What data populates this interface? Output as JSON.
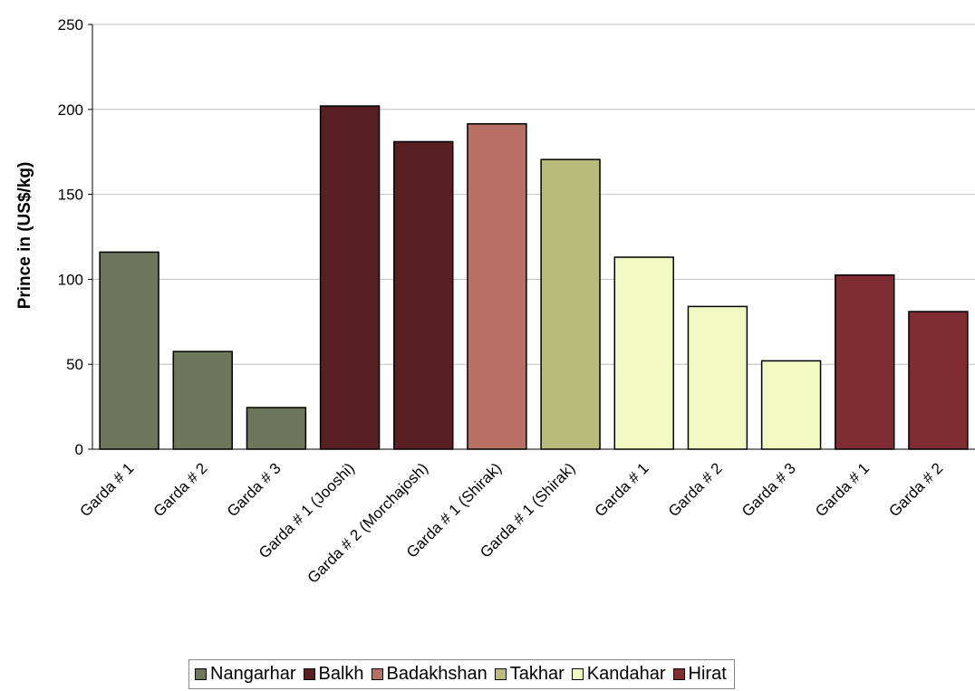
{
  "chart_data": {
    "type": "bar",
    "title": "",
    "xlabel": "",
    "ylabel": "Prince in (US$/kg)",
    "ylim": [
      0,
      250
    ],
    "yticks": [
      0,
      50,
      100,
      150,
      200,
      250
    ],
    "grid": true,
    "legend_position": "bottom",
    "categories": [
      "Garda # 1",
      "Garda # 2",
      "Garda # 3",
      "Garda # 1 (Jooshi)",
      "Garda # 2 (Morchajosh)",
      "Garda # 1 (Shirak)",
      "Garda # 1 (Shirak)",
      "Garda # 1",
      "Garda # 2",
      "Garda # 3",
      "Garda # 1",
      "Garda # 2"
    ],
    "values": [
      116,
      57.5,
      24.5,
      202,
      181,
      191.5,
      170.5,
      113,
      84,
      52,
      102.5,
      81
    ],
    "bar_series": [
      "Nangarhar",
      "Nangarhar",
      "Nangarhar",
      "Balkh",
      "Balkh",
      "Badakhshan",
      "Takhar",
      "Kandahar",
      "Kandahar",
      "Kandahar",
      "Hirat",
      "Hirat"
    ],
    "series": [
      {
        "name": "Nangarhar",
        "color": "#6e775b"
      },
      {
        "name": "Balkh",
        "color": "#5a1f23"
      },
      {
        "name": "Badakhshan",
        "color": "#b87064"
      },
      {
        "name": "Takhar",
        "color": "#b8bb7b"
      },
      {
        "name": "Kandahar",
        "color": "#f2f8c2"
      },
      {
        "name": "Hirat",
        "color": "#7f2c33"
      }
    ]
  }
}
